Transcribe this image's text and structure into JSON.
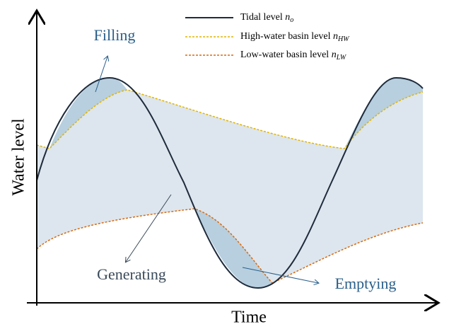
{
  "axes": {
    "y_label": "Water level",
    "x_label": "Time"
  },
  "legend": [
    {
      "label": "Tidal level",
      "symbol": "n",
      "subscript": "o"
    },
    {
      "label": "High-water basin level",
      "symbol": "n",
      "subscript": "HW"
    },
    {
      "label": "Low-water basin level",
      "symbol": "n",
      "subscript": "LW"
    }
  ],
  "annotations": {
    "filling": "Filling",
    "generating": "Generating",
    "emptying": "Emptying"
  }
}
